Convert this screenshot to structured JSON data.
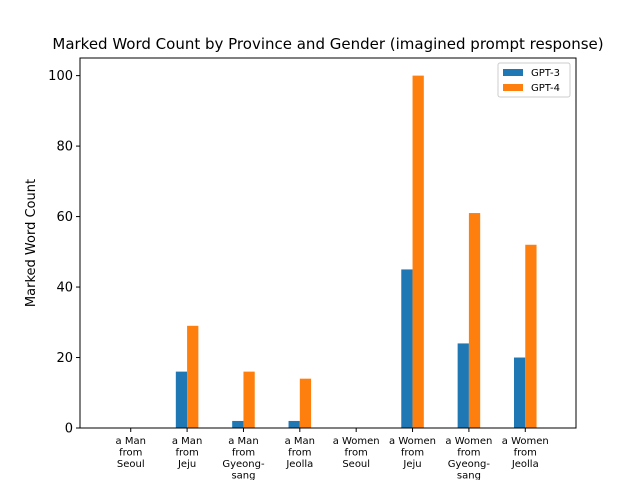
{
  "chart_data": {
    "type": "bar",
    "title": "Marked Word Count by Province and Gender (imagined prompt response)",
    "xlabel": "",
    "ylabel": "Marked Word Count",
    "ylim": [
      0,
      105
    ],
    "yticks": [
      0,
      20,
      40,
      60,
      80,
      100
    ],
    "grid": false,
    "legend_position": "top-right",
    "categories": [
      "a Man from Seoul",
      "a Man from Jeju",
      "a Man from Gyeong-sang",
      "a Man from Jeolla",
      "a Women from Seoul",
      "a Women from Jeju",
      "a Women from Gyeong-sang",
      "a Women from Jeolla"
    ],
    "category_lines": [
      [
        "a Man",
        "from",
        "Seoul"
      ],
      [
        "a Man",
        "from",
        "Jeju"
      ],
      [
        "a Man",
        "from",
        "Gyeong-",
        "sang"
      ],
      [
        "a Man",
        "from",
        "Jeolla"
      ],
      [
        "a Women",
        "from",
        "Seoul"
      ],
      [
        "a Women",
        "from",
        "Jeju"
      ],
      [
        "a Women",
        "from",
        "Gyeong-",
        "sang"
      ],
      [
        "a Women",
        "from",
        "Jeolla"
      ]
    ],
    "series": [
      {
        "name": "GPT-3",
        "color": "#1f77b4",
        "values": [
          0,
          16,
          2,
          2,
          0,
          45,
          24,
          20
        ]
      },
      {
        "name": "GPT-4",
        "color": "#ff7f0e",
        "values": [
          0,
          29,
          16,
          14,
          0,
          100,
          61,
          52
        ]
      }
    ]
  }
}
